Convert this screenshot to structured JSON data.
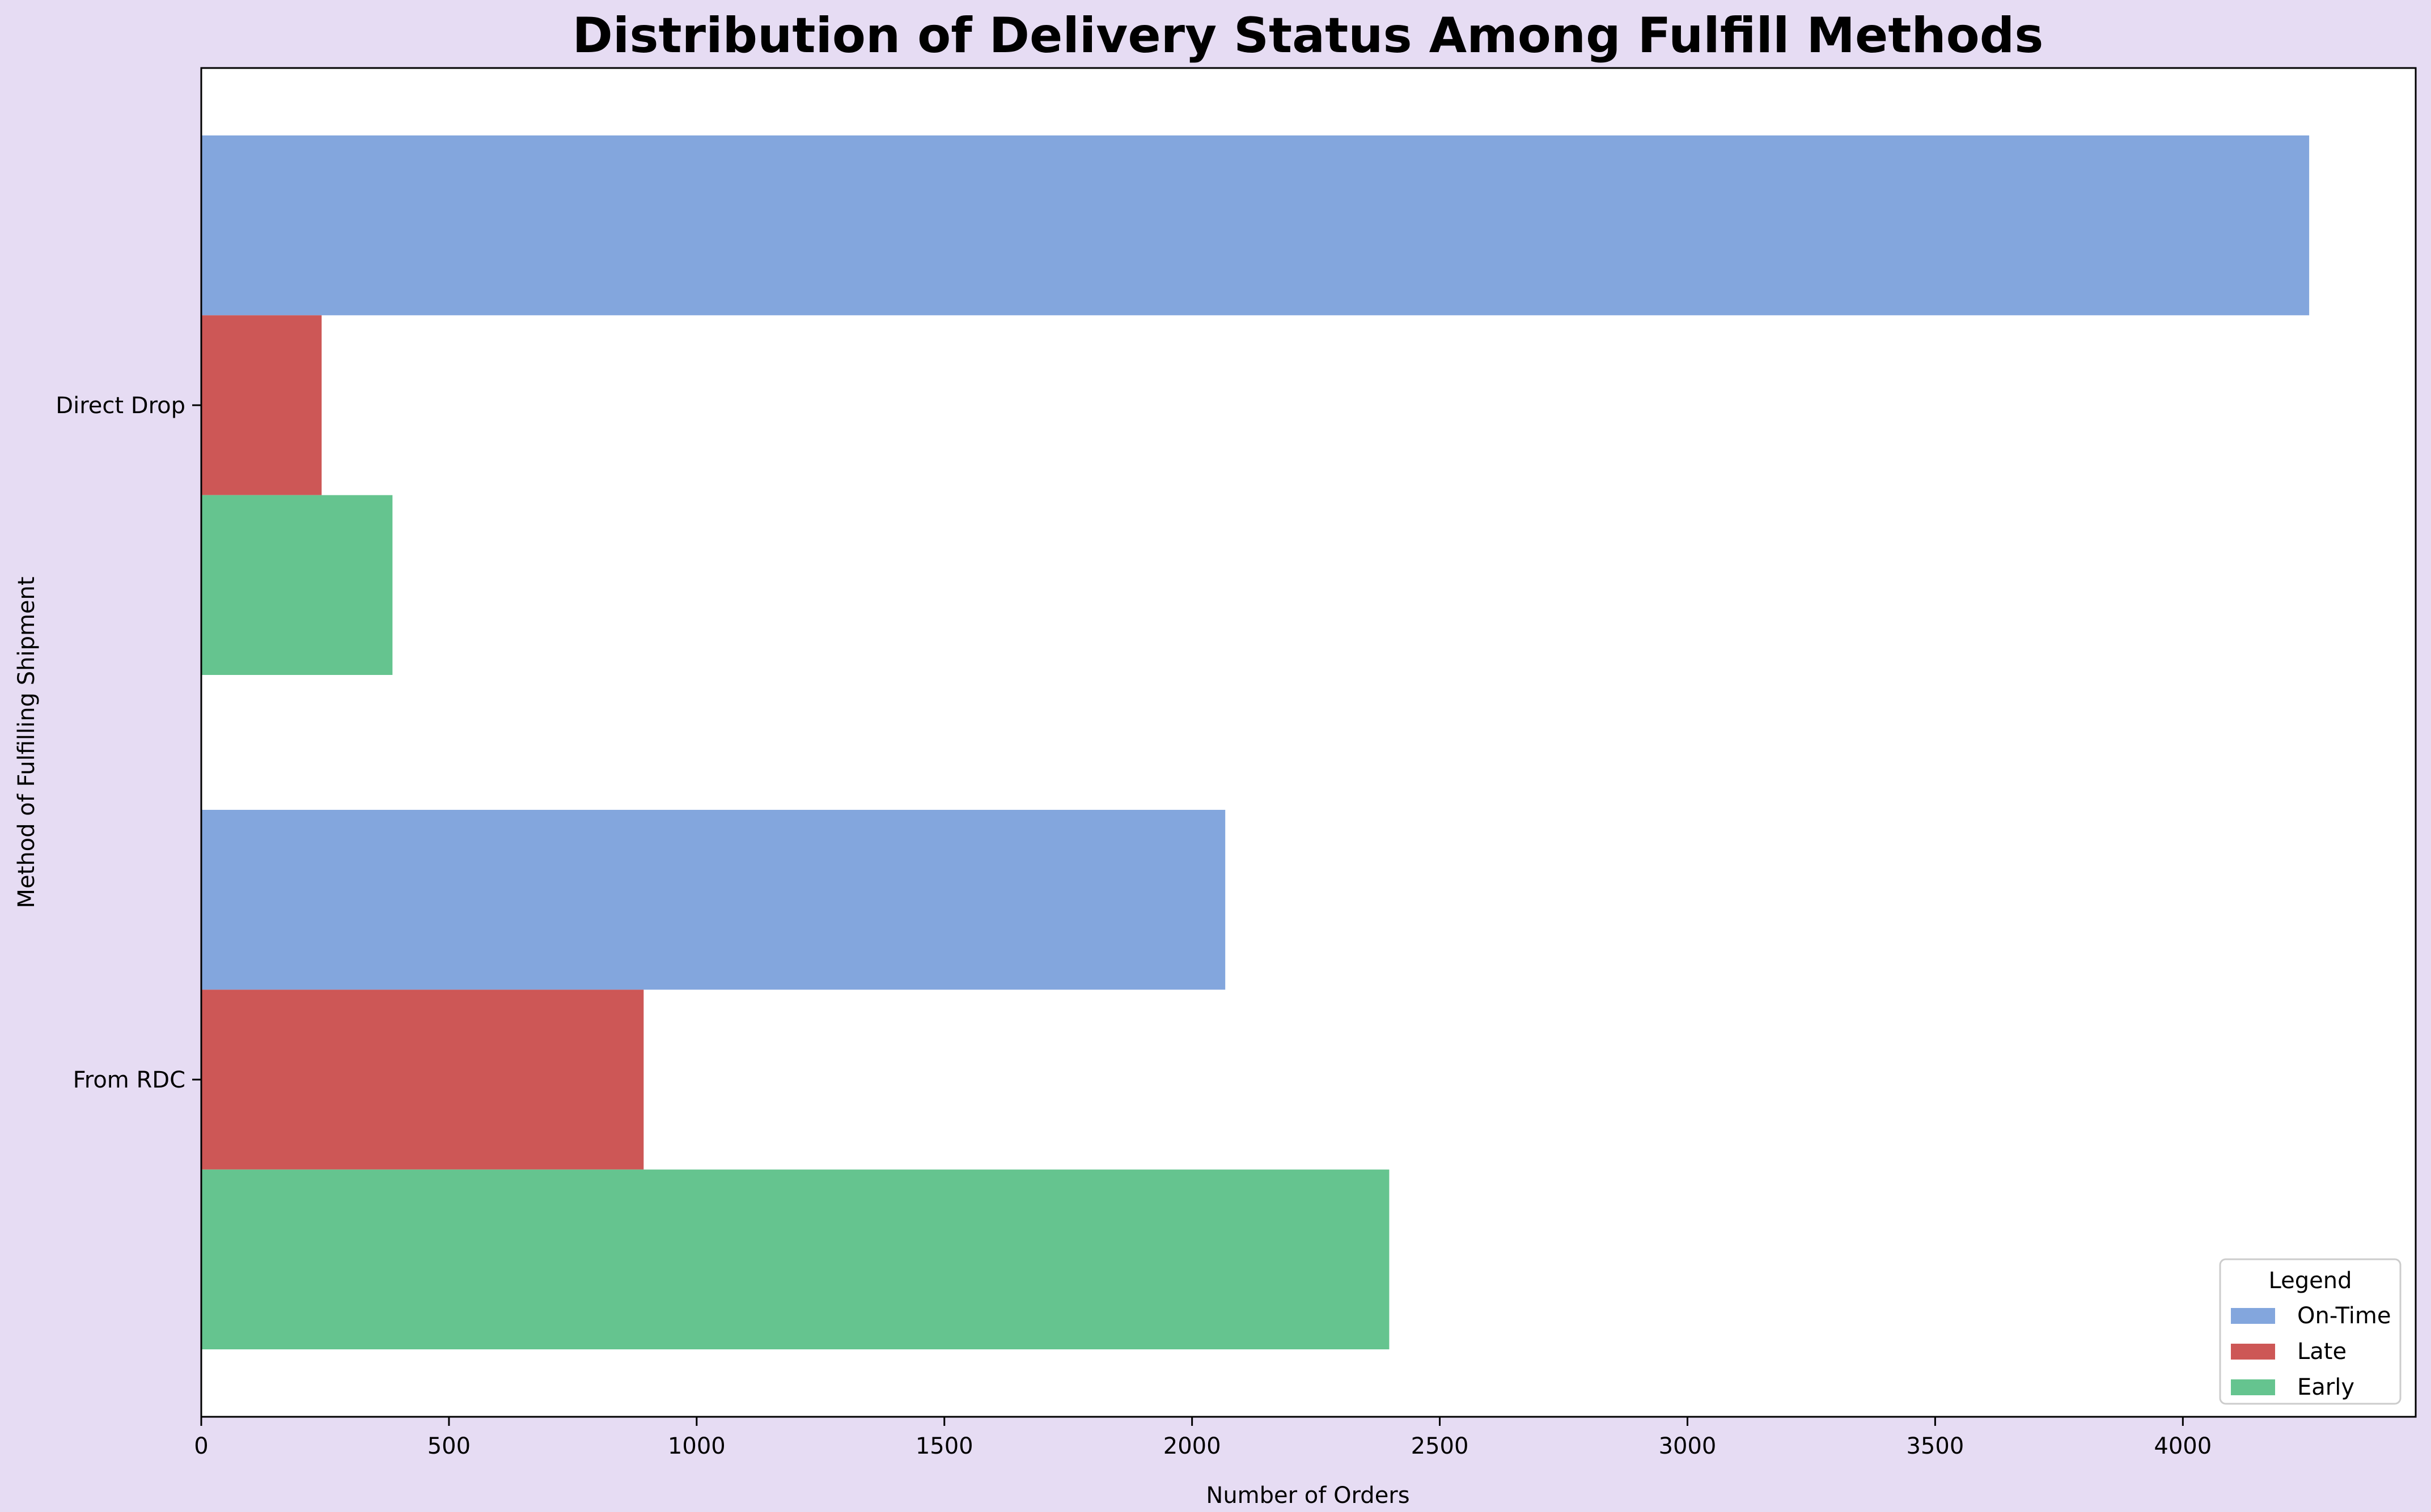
{
  "chart_data": {
    "type": "bar",
    "orientation": "horizontal",
    "title": "Distribution of Delivery Status Among Fulfill Methods",
    "xlabel": "Number of Orders",
    "ylabel": "Method of Fulfilling Shipment",
    "categories": [
      "Direct Drop",
      "From RDC"
    ],
    "series": [
      {
        "name": "On-Time",
        "color": "#83a6dd",
        "values": [
          4255,
          2067
        ]
      },
      {
        "name": "Late",
        "color": "#cd5756",
        "values": [
          243,
          893
        ]
      },
      {
        "name": "Early",
        "color": "#65c48f",
        "values": [
          386,
          2398
        ]
      }
    ],
    "xlim": [
      0,
      4470
    ],
    "xticks": [
      0,
      500,
      1000,
      1500,
      2000,
      2500,
      3000,
      3500,
      4000
    ],
    "grid": false,
    "legend": {
      "title": "Legend",
      "position": "lower right"
    }
  }
}
